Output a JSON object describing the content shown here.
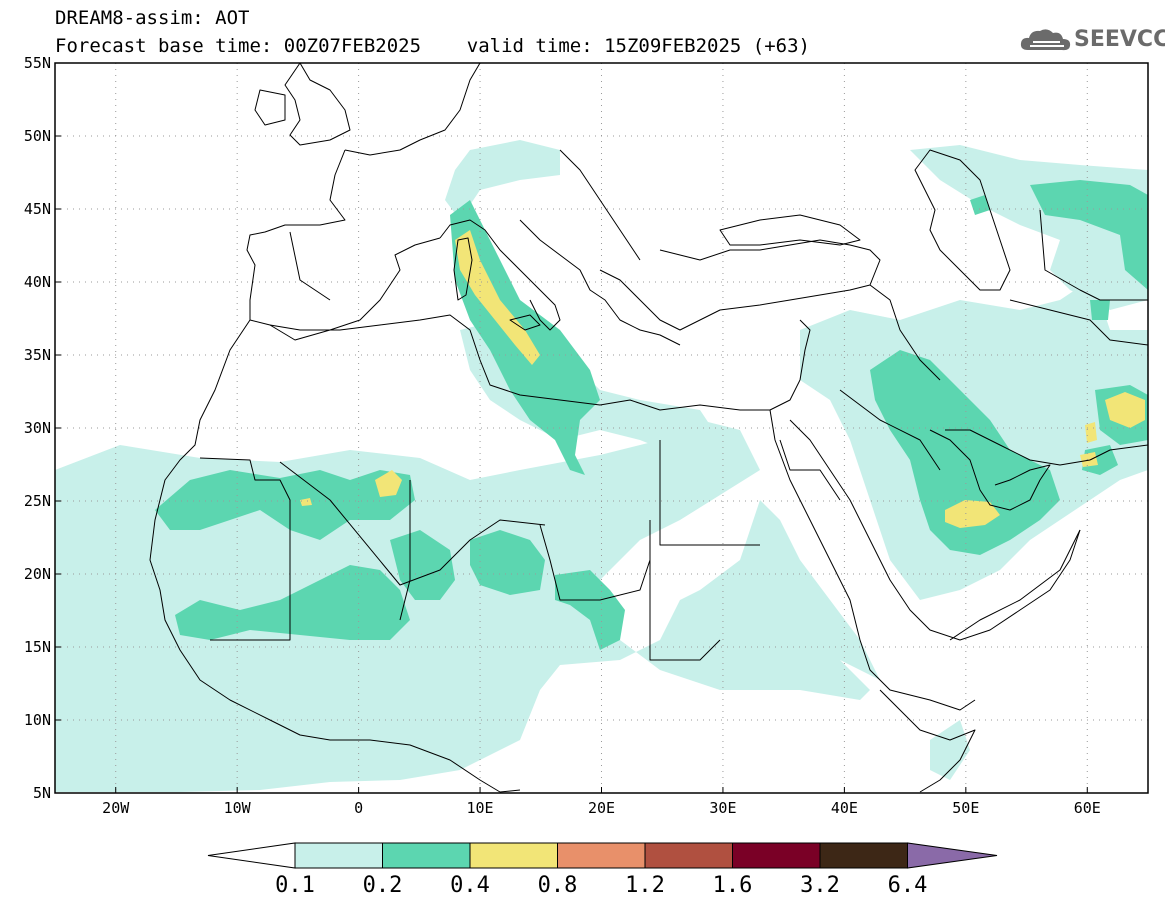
{
  "header": {
    "title_line1": "DREAM8-assim: AOT",
    "title_line2": "Forecast base time: 00Z07FEB2025    valid time: 15Z09FEB2025 (+63)",
    "logo_text": "SEEVCCC"
  },
  "map": {
    "variable": "AOT",
    "lon_range": [
      -25,
      65
    ],
    "lat_range": [
      5,
      55
    ],
    "lat_labels": [
      "55N",
      "50N",
      "45N",
      "40N",
      "35N",
      "30N",
      "25N",
      "20N",
      "15N",
      "10N",
      "5N"
    ],
    "lat_values": [
      55,
      50,
      45,
      40,
      35,
      30,
      25,
      20,
      15,
      10,
      5
    ],
    "lon_labels": [
      "20W",
      "10W",
      "0",
      "10E",
      "20E",
      "30E",
      "40E",
      "50E",
      "60E"
    ],
    "lon_values": [
      -20,
      -10,
      0,
      10,
      20,
      30,
      40,
      50,
      60
    ],
    "grid": "dotted",
    "colors": {
      "c0_1": "#c8f0ea",
      "c0_2": "#5cd6b0",
      "c0_4": "#f2e577",
      "c0_8": "#e8906a",
      "c1_2": "#b05040",
      "c1_6": "#7a0026",
      "c3_2": "#3d2716",
      "c6_4": "#8a6aa8"
    }
  },
  "colorbar": {
    "labels": [
      "0.1",
      "0.2",
      "0.4",
      "0.8",
      "1.2",
      "1.6",
      "3.2",
      "6.4"
    ],
    "colors": [
      "#c8f0ea",
      "#5cd6b0",
      "#f2e577",
      "#e8906a",
      "#b05040",
      "#7a0026",
      "#3d2716"
    ],
    "under_color": "#ffffff",
    "over_color": "#8a6aa8"
  }
}
